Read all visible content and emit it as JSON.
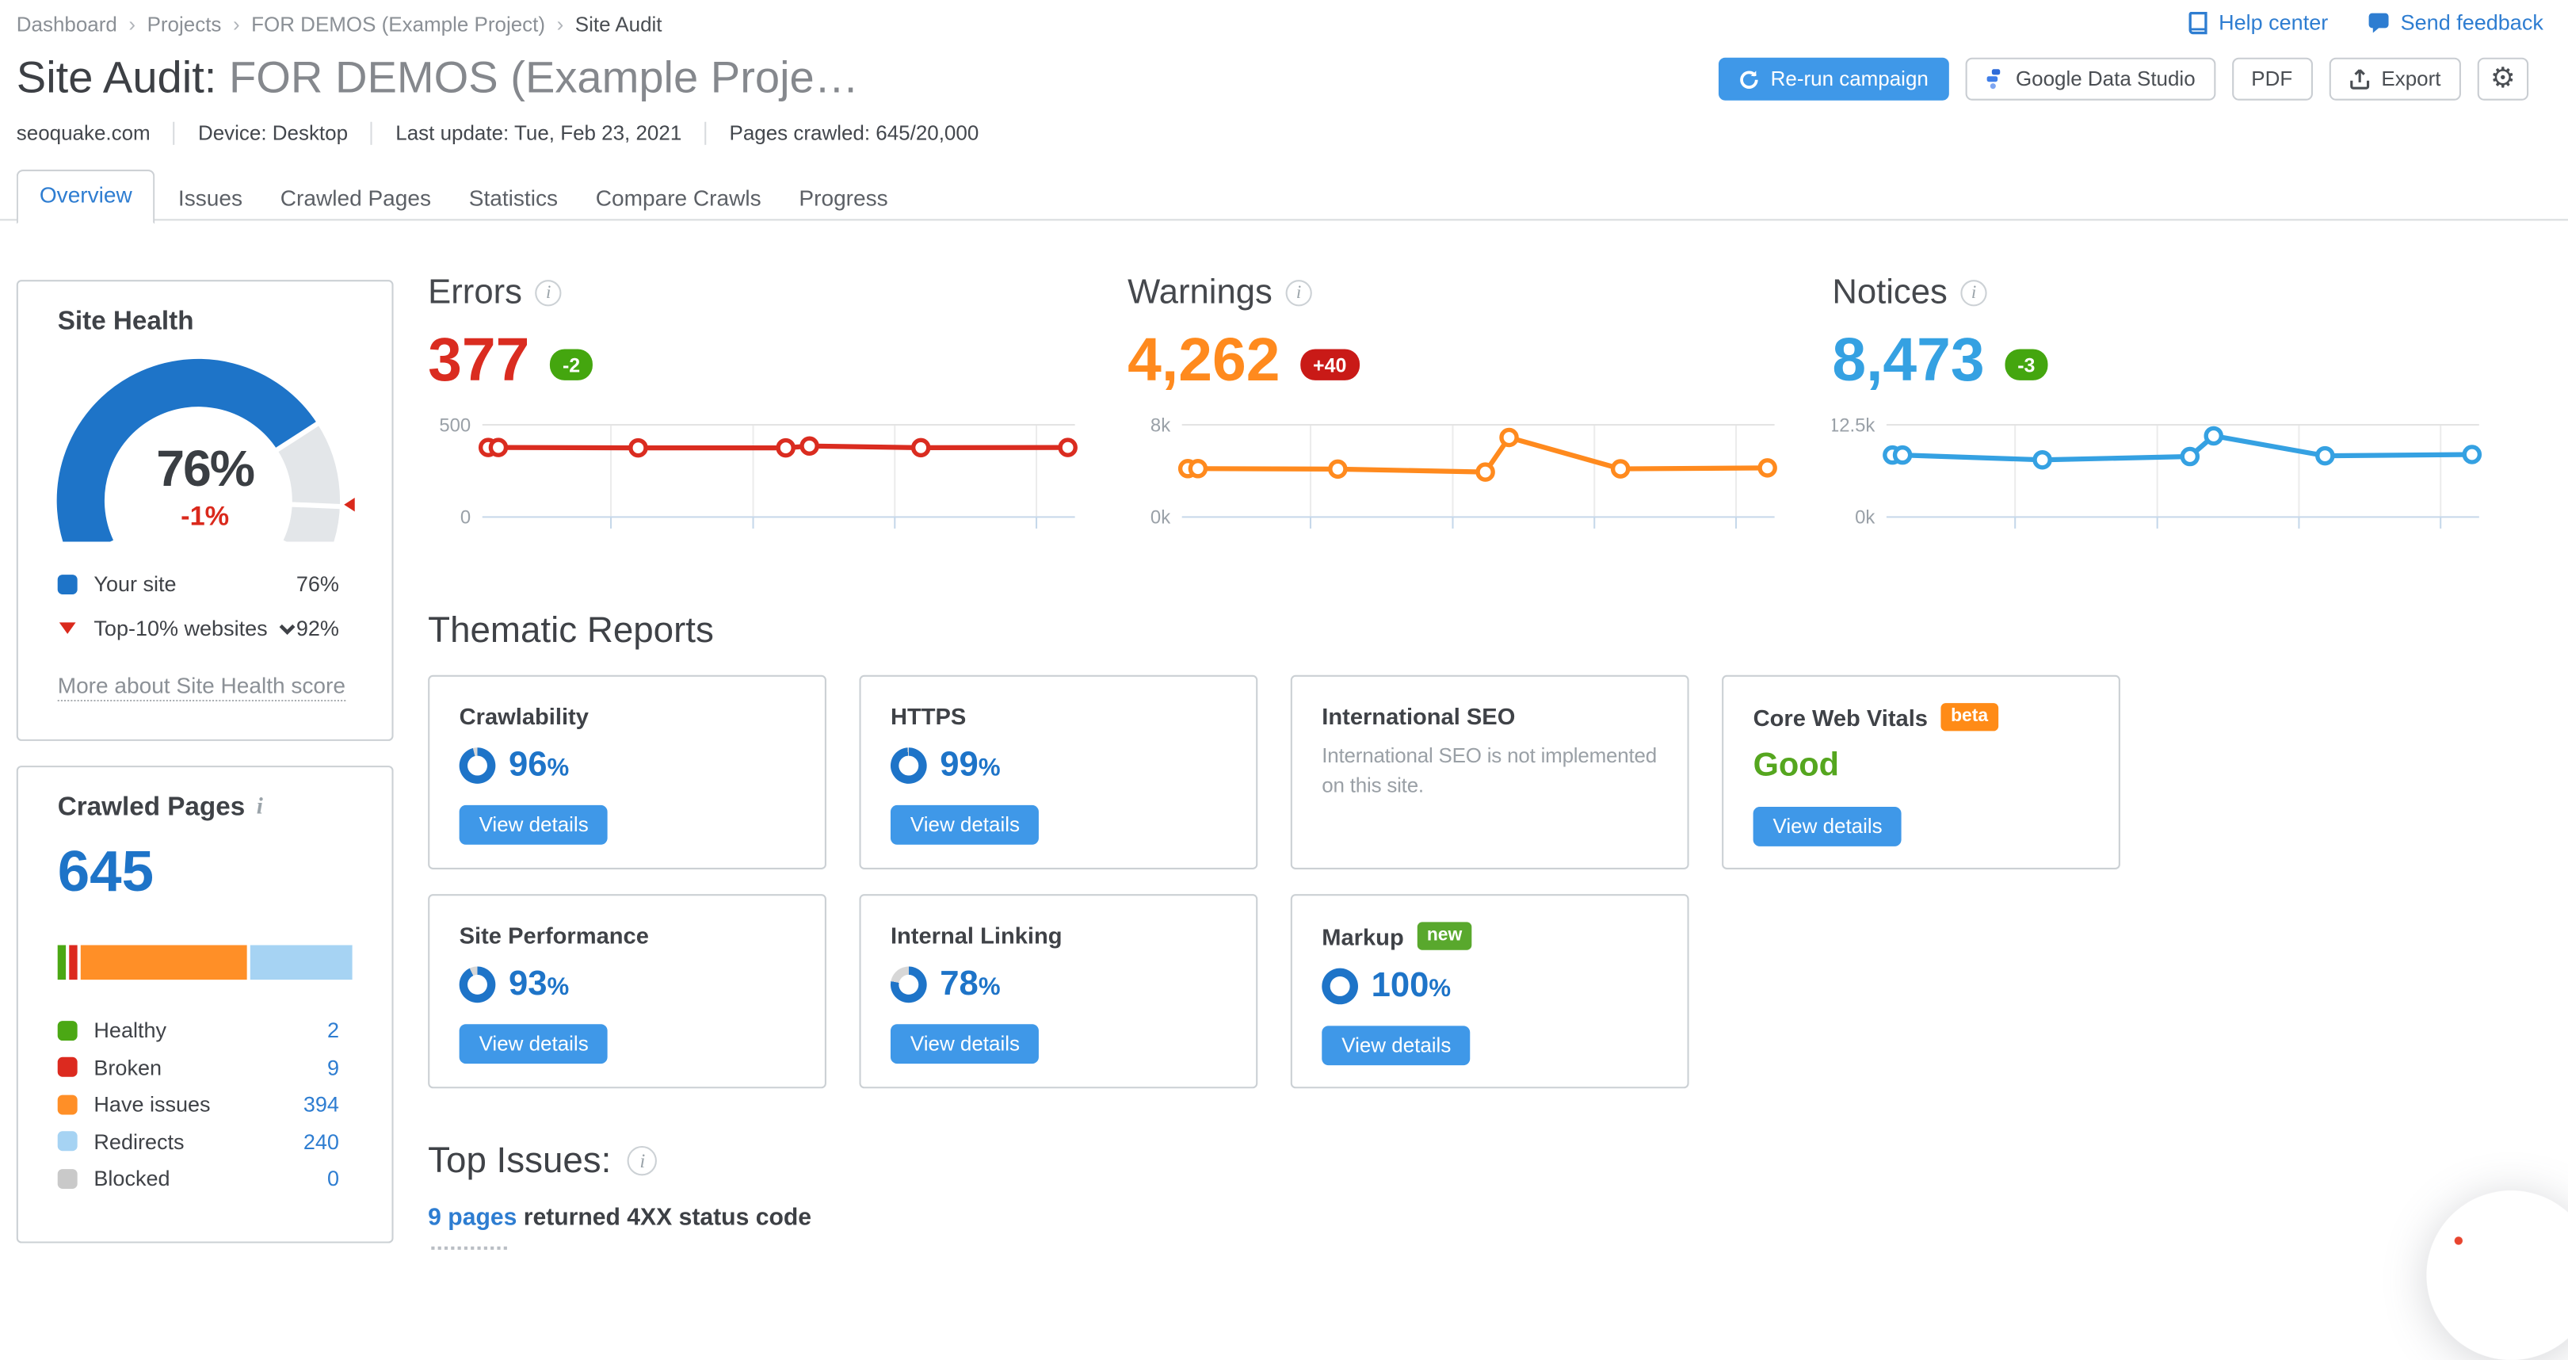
{
  "breadcrumb": {
    "separator": "›",
    "items": [
      "Dashboard",
      "Projects",
      "FOR DEMOS (Example Project)",
      "Site Audit"
    ]
  },
  "header": {
    "help_center": "Help center",
    "send_feedback": "Send feedback",
    "title_prefix": "Site Audit:",
    "title_project": "FOR DEMOS (Example Proje…",
    "buttons": {
      "rerun": "Re-run campaign",
      "gds": "Google Data Studio",
      "pdf": "PDF",
      "export": "Export"
    }
  },
  "meta": {
    "items": [
      "seoquake.com",
      "Device: Desktop",
      "Last update: Tue, Feb 23, 2021",
      "Pages crawled: 645/20,000"
    ]
  },
  "tabs": [
    {
      "label": "Overview",
      "active": true
    },
    {
      "label": "Issues",
      "active": false
    },
    {
      "label": "Crawled Pages",
      "active": false
    },
    {
      "label": "Statistics",
      "active": false
    },
    {
      "label": "Compare Crawls",
      "active": false
    },
    {
      "label": "Progress",
      "active": false
    }
  ],
  "site_health": {
    "title": "Site Health",
    "score_label": "76%",
    "delta_label": "-1%",
    "gauge": {
      "value": 76,
      "benchmark": 92,
      "color": "#1e74c8",
      "track": "#e3e6e9",
      "marker": "#da291c"
    },
    "legend": [
      {
        "label": "Your site",
        "value": "76%",
        "swatch": "square",
        "color": "#1e74c8",
        "dropdown": false
      },
      {
        "label": "Top-10% websites",
        "value": "92%",
        "swatch": "triangle-down",
        "color": "#da291c",
        "dropdown": true
      }
    ],
    "link": "More about Site Health score"
  },
  "crawled_pages": {
    "title": "Crawled Pages",
    "info": "i",
    "total": "645",
    "segments": [
      {
        "label": "Healthy",
        "count": 2,
        "color": "#4ba814"
      },
      {
        "label": "Broken",
        "count": 9,
        "color": "#dc2a1f"
      },
      {
        "label": "Have issues",
        "count": 394,
        "color": "#ff8f27"
      },
      {
        "label": "Redirects",
        "count": 240,
        "color": "#a6d3f3"
      },
      {
        "label": "Blocked",
        "count": 0,
        "color": "#c9c9c9"
      }
    ]
  },
  "chart_data": [
    {
      "type": "line",
      "name": "errors",
      "title": "Errors",
      "value_label": "377",
      "value": 377,
      "color": "#da2c20",
      "badge": {
        "label": "-2",
        "color": "#44a60f"
      },
      "ylim": [
        0,
        500
      ],
      "y_max_label": "500",
      "y_min_label": "0",
      "x": [
        0.01,
        0.027,
        0.263,
        0.512,
        0.552,
        0.74,
        0.988
      ],
      "values": [
        377,
        377,
        375,
        375,
        385,
        376,
        377
      ],
      "grid_x": [
        0.217,
        0.457,
        0.696,
        0.935
      ]
    },
    {
      "type": "line",
      "name": "warnings",
      "title": "Warnings",
      "value_label": "4,262",
      "value": 4262,
      "color": "#ff8a1e",
      "badge": {
        "label": "+40",
        "color": "#c91a17"
      },
      "ylim": [
        0,
        8000
      ],
      "y_max_label": "8k",
      "y_min_label": "0k",
      "x": [
        0.01,
        0.027,
        0.263,
        0.512,
        0.552,
        0.74,
        0.988
      ],
      "values": [
        4200,
        4200,
        4160,
        3900,
        6900,
        4180,
        4262
      ],
      "grid_x": [
        0.217,
        0.457,
        0.696,
        0.935
      ]
    },
    {
      "type": "line",
      "name": "notices",
      "title": "Notices",
      "value_label": "8,473",
      "value": 8473,
      "color": "#35a1e2",
      "badge": {
        "label": "-3",
        "color": "#44a60f"
      },
      "ylim": [
        0,
        12500
      ],
      "y_max_label": "12.5k",
      "y_min_label": "0k",
      "x": [
        0.01,
        0.027,
        0.263,
        0.512,
        0.552,
        0.74,
        0.988
      ],
      "values": [
        8400,
        8400,
        7750,
        8200,
        11000,
        8300,
        8473
      ],
      "grid_x": [
        0.217,
        0.457,
        0.696,
        0.935
      ]
    }
  ],
  "thematic": {
    "title": "Thematic Reports",
    "button_label": "View details",
    "donut_color": "#1e74c8",
    "donut_track": "#d7d7d7",
    "cards": [
      {
        "title": "Crawlability",
        "type": "percent",
        "percent": 96,
        "value": "96",
        "unit": "%",
        "button": true
      },
      {
        "title": "HTTPS",
        "type": "percent",
        "percent": 99,
        "value": "99",
        "unit": "%",
        "button": true
      },
      {
        "title": "International SEO",
        "type": "text",
        "text": "International SEO is not implemented on this site.",
        "button": false
      },
      {
        "title": "Core Web Vitals",
        "type": "status",
        "badge": {
          "label": "beta",
          "color": "#ff8b17"
        },
        "status": "Good",
        "status_color": "#55a61f",
        "button": true
      },
      {
        "title": "Site Performance",
        "type": "percent",
        "percent": 93,
        "value": "93",
        "unit": "%",
        "button": true
      },
      {
        "title": "Internal Linking",
        "type": "percent",
        "percent": 78,
        "value": "78",
        "unit": "%",
        "button": true
      },
      {
        "title": "Markup",
        "type": "percent",
        "percent": 100,
        "value": "100",
        "unit": "%",
        "badge": {
          "label": "new",
          "color": "#59a82d"
        },
        "button": true
      }
    ]
  },
  "top_issues": {
    "title": "Top Issues:",
    "items": [
      {
        "link": "9 pages",
        "text": " returned 4XX status code"
      }
    ]
  }
}
